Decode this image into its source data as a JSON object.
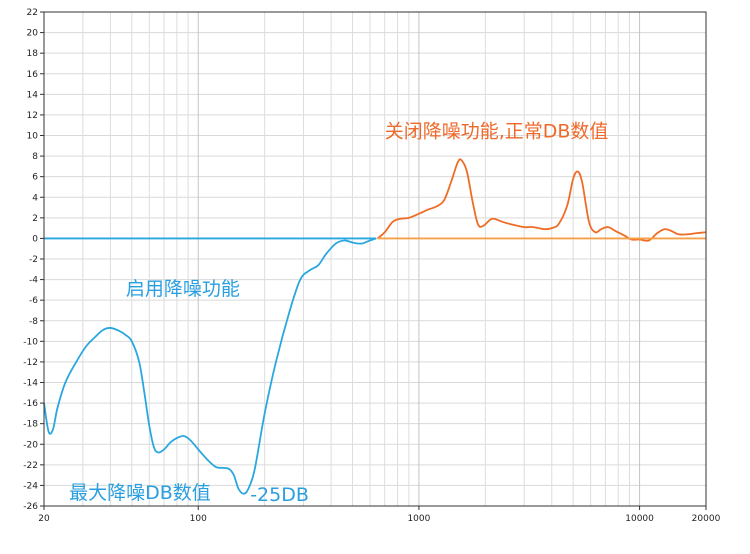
{
  "chart_data": {
    "type": "line",
    "xscale": "log",
    "xlim": [
      20,
      20000
    ],
    "ylim": [
      -26,
      22
    ],
    "x_ticks": [
      20,
      100,
      1000,
      10000,
      20000
    ],
    "x_tick_labels": [
      "20",
      "100",
      "1000",
      "10000",
      "20000"
    ],
    "y_ticks": [
      22,
      20,
      18,
      16,
      14,
      12,
      10,
      8,
      6,
      4,
      2,
      0,
      -2,
      -4,
      -6,
      -8,
      -10,
      -12,
      -14,
      -16,
      -18,
      -20,
      -22,
      -24,
      -26
    ],
    "y_tick_labels": [
      "22",
      "20",
      "18",
      "16",
      "14",
      "12",
      "10",
      "8",
      "6",
      "4",
      "2",
      "0",
      "-2",
      "-4",
      "-6",
      "-8",
      "-10",
      "-12",
      "-14",
      "-16",
      "-18",
      "-20",
      "-22",
      "-24",
      "-26"
    ],
    "grid": true,
    "colors": {
      "blue": "#2aa7df",
      "orange": "#ef6c26",
      "blue_text": "#2a9fe0",
      "orange_text": "#ee6a2a"
    },
    "series": [
      {
        "color": "#2aa7df",
        "points": [
          [
            20,
            -16
          ],
          [
            21,
            -18.8
          ],
          [
            22,
            -18.5
          ],
          [
            23,
            -16.5
          ],
          [
            25,
            -14
          ],
          [
            28,
            -12
          ],
          [
            31,
            -10.5
          ],
          [
            34,
            -9.6
          ],
          [
            37,
            -8.9
          ],
          [
            40,
            -8.7
          ],
          [
            44,
            -9.0
          ],
          [
            47,
            -9.4
          ],
          [
            50,
            -10
          ],
          [
            54,
            -12
          ],
          [
            57,
            -15
          ],
          [
            60,
            -18.2
          ],
          [
            63,
            -20.3
          ],
          [
            66,
            -20.8
          ],
          [
            70,
            -20.5
          ],
          [
            75,
            -19.8
          ],
          [
            80,
            -19.4
          ],
          [
            86,
            -19.2
          ],
          [
            92,
            -19.6
          ],
          [
            100,
            -20.5
          ],
          [
            110,
            -21.5
          ],
          [
            120,
            -22.2
          ],
          [
            130,
            -22.3
          ],
          [
            138,
            -22.4
          ],
          [
            145,
            -23
          ],
          [
            152,
            -24.3
          ],
          [
            160,
            -24.8
          ],
          [
            168,
            -24.4
          ],
          [
            180,
            -22.5
          ],
          [
            200,
            -17
          ],
          [
            225,
            -12
          ],
          [
            260,
            -7
          ],
          [
            290,
            -4
          ],
          [
            320,
            -3.1
          ],
          [
            350,
            -2.6
          ],
          [
            380,
            -1.5
          ],
          [
            420,
            -0.5
          ],
          [
            460,
            -0.2
          ],
          [
            500,
            -0.4
          ],
          [
            550,
            -0.5
          ],
          [
            600,
            -0.2
          ],
          [
            640,
            0
          ]
        ]
      },
      {
        "color": "#2aa7df",
        "points": [
          [
            20,
            0
          ],
          [
            640,
            0
          ]
        ]
      },
      {
        "color": "#ef6c26",
        "points": [
          [
            650,
            0
          ],
          [
            700,
            0.6
          ],
          [
            760,
            1.6
          ],
          [
            820,
            1.9
          ],
          [
            900,
            2
          ],
          [
            1000,
            2.4
          ],
          [
            1100,
            2.8
          ],
          [
            1200,
            3.1
          ],
          [
            1300,
            3.7
          ],
          [
            1400,
            5.5
          ],
          [
            1500,
            7.4
          ],
          [
            1560,
            7.6
          ],
          [
            1650,
            6.5
          ],
          [
            1750,
            3.6
          ],
          [
            1850,
            1.4
          ],
          [
            1950,
            1.2
          ],
          [
            2100,
            1.8
          ],
          [
            2200,
            1.9
          ],
          [
            2400,
            1.6
          ],
          [
            2700,
            1.3
          ],
          [
            3000,
            1.1
          ],
          [
            3300,
            1.1
          ],
          [
            3700,
            0.9
          ],
          [
            4000,
            1.0
          ],
          [
            4300,
            1.4
          ],
          [
            4700,
            3.2
          ],
          [
            5000,
            5.8
          ],
          [
            5250,
            6.5
          ],
          [
            5500,
            5.4
          ],
          [
            5900,
            1.6
          ],
          [
            6300,
            0.6
          ],
          [
            6700,
            0.9
          ],
          [
            7200,
            1.1
          ],
          [
            7800,
            0.7
          ],
          [
            8500,
            0.3
          ],
          [
            9200,
            -0.1
          ],
          [
            10000,
            -0.1
          ],
          [
            11000,
            -0.2
          ],
          [
            12000,
            0.5
          ],
          [
            13000,
            0.9
          ],
          [
            14000,
            0.7
          ],
          [
            15000,
            0.4
          ],
          [
            16500,
            0.4
          ],
          [
            18000,
            0.5
          ],
          [
            20000,
            0.6
          ]
        ]
      },
      {
        "color": "#f6a04a",
        "points": [
          [
            650,
            0
          ],
          [
            20000,
            0
          ]
        ]
      }
    ],
    "annotations": [
      {
        "text": "关闭降噪功能,正常DB数值",
        "color": "#ee6a2a",
        "x": 700,
        "y": 9.8
      },
      {
        "text": "启用降噪功能",
        "color": "#2a9fe0",
        "x": 47,
        "y": -5.5
      },
      {
        "text": "最大降噪DB数值",
        "color": "#2a9fe0",
        "x": 26,
        "y": -25.3
      },
      {
        "text": "-25DB",
        "color": "#2a9fe0",
        "x": 172,
        "y": -25.5
      }
    ]
  }
}
